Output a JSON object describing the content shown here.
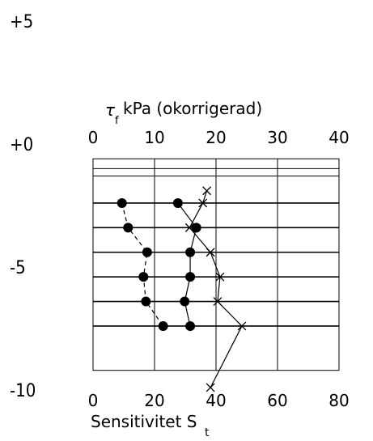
{
  "chart_data": {
    "type": "scatter",
    "depth_axis": {
      "labels": [
        "+5",
        "+0",
        "-5",
        "-10"
      ],
      "values": [
        5,
        0,
        -5,
        -10
      ]
    },
    "top_axis": {
      "symbol": "τ",
      "subscript": "f",
      "label": "kPa (okorrigerad)",
      "ticks": [
        "0",
        "10",
        "20",
        "30",
        "40"
      ],
      "range": [
        0,
        40
      ]
    },
    "bottom_axis": {
      "label": "Sensitivitet S",
      "subscript": "t",
      "ticks": [
        "0",
        "20",
        "40",
        "60",
        "80"
      ],
      "range": [
        0,
        80
      ]
    },
    "series": [
      {
        "marker": "dot",
        "line": "dashed",
        "axis": "top",
        "points": [
          {
            "depth": -2.4,
            "value": 4.7
          },
          {
            "depth": -3.4,
            "value": 5.7
          },
          {
            "depth": -4.4,
            "value": 8.8
          },
          {
            "depth": -5.4,
            "value": 8.2
          },
          {
            "depth": -6.4,
            "value": 8.6
          },
          {
            "depth": -7.4,
            "value": 11.4
          }
        ]
      },
      {
        "marker": "dot",
        "line": "solid",
        "axis": "top",
        "points": [
          {
            "depth": -2.4,
            "value": 13.8
          },
          {
            "depth": -3.4,
            "value": 16.8
          },
          {
            "depth": -4.4,
            "value": 15.8
          },
          {
            "depth": -5.4,
            "value": 15.8
          },
          {
            "depth": -6.4,
            "value": 14.9
          },
          {
            "depth": -7.4,
            "value": 15.8
          }
        ]
      },
      {
        "marker": "cross",
        "line": "solid",
        "axis": "bottom",
        "points": [
          {
            "depth": -1.9,
            "value": 37.0
          },
          {
            "depth": -2.4,
            "value": 35.7
          },
          {
            "depth": -3.4,
            "value": 31.4
          },
          {
            "depth": -4.4,
            "value": 38.2
          },
          {
            "depth": -5.4,
            "value": 41.3
          },
          {
            "depth": -6.4,
            "value": 40.5
          },
          {
            "depth": -7.4,
            "value": 48.4
          },
          {
            "depth": -9.9,
            "value": 38.2
          }
        ]
      }
    ],
    "grid": true
  }
}
